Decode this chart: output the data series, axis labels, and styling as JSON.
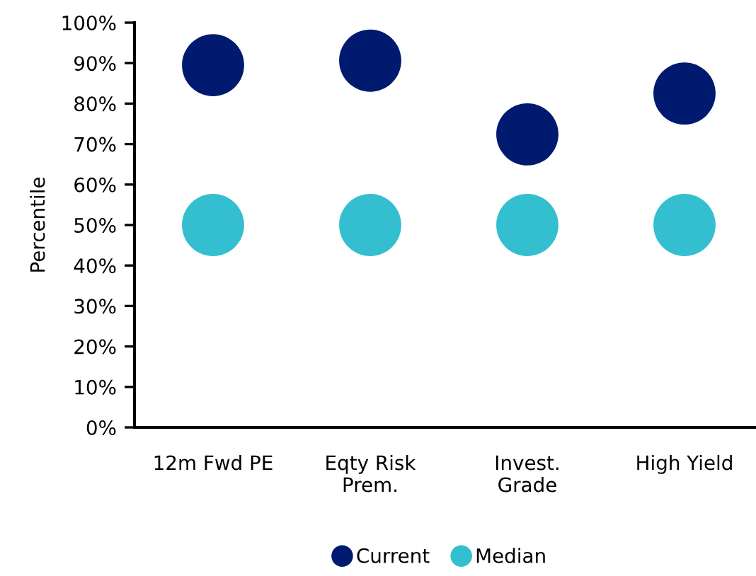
{
  "chart_data": {
    "type": "scatter",
    "ylabel": "Percentile",
    "categories": [
      "12m Fwd PE",
      "Eqty Risk\nPrem.",
      "Invest.\nGrade",
      "High Yield"
    ],
    "series": [
      {
        "name": "Current",
        "color": "#001a70",
        "values": [
          89.5,
          90.6,
          72.4,
          82.5
        ]
      },
      {
        "name": "Median",
        "color": "#33bfcf",
        "values": [
          50,
          50,
          50,
          50
        ]
      }
    ],
    "ylim": [
      0,
      100
    ],
    "yticks": [
      {
        "value": 0,
        "label": "0%"
      },
      {
        "value": 10,
        "label": "10%"
      },
      {
        "value": 20,
        "label": "20%"
      },
      {
        "value": 30,
        "label": "30%"
      },
      {
        "value": 40,
        "label": "40%"
      },
      {
        "value": 50,
        "label": "50%"
      },
      {
        "value": 60,
        "label": "60%"
      },
      {
        "value": 70,
        "label": "70%"
      },
      {
        "value": 80,
        "label": "80%"
      },
      {
        "value": 90,
        "label": "90%"
      },
      {
        "value": 100,
        "label": "100%"
      }
    ],
    "grid": false,
    "legend": "bottom",
    "marker": "circle"
  }
}
